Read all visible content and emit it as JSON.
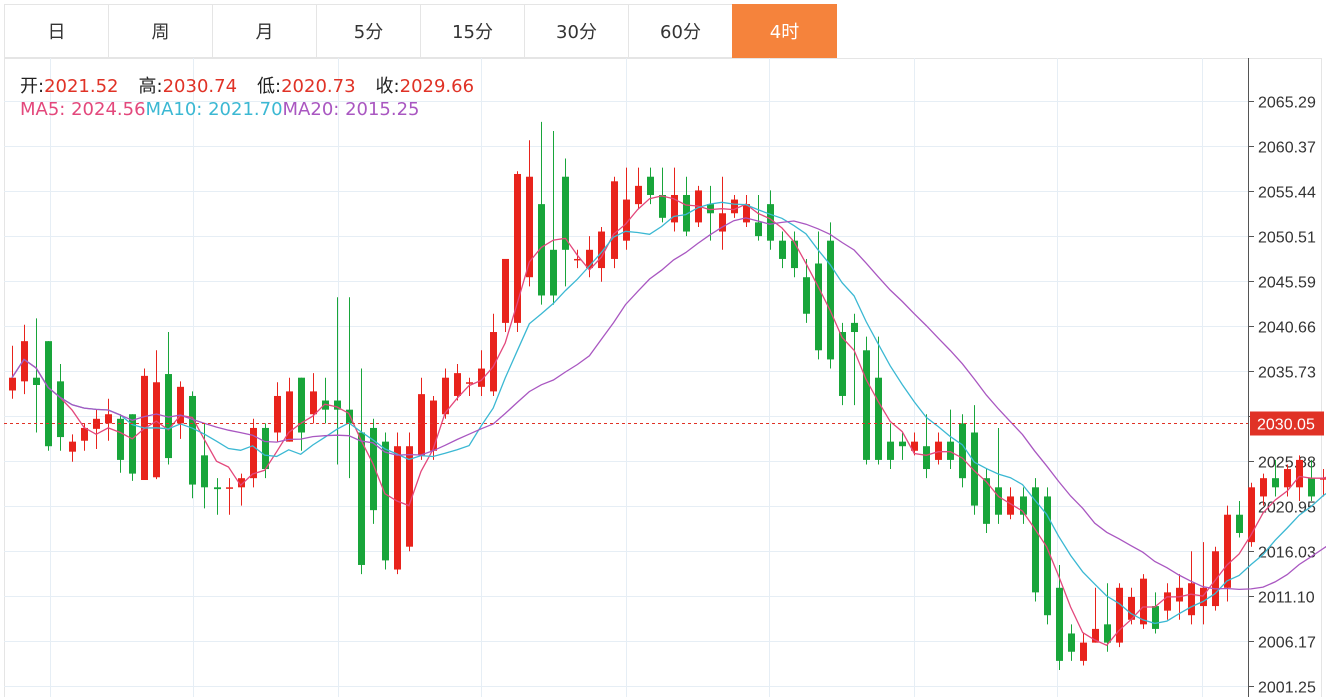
{
  "tabs": [
    {
      "label": "日",
      "active": false
    },
    {
      "label": "周",
      "active": false
    },
    {
      "label": "月",
      "active": false
    },
    {
      "label": "5分",
      "active": false
    },
    {
      "label": "15分",
      "active": false
    },
    {
      "label": "30分",
      "active": false
    },
    {
      "label": "60分",
      "active": false
    },
    {
      "label": "4时",
      "active": true
    }
  ],
  "info": {
    "open_label": "开:",
    "open": "2021.52",
    "high_label": "高:",
    "high": "2030.74",
    "low_label": "低:",
    "low": "2020.73",
    "close_label": "收:",
    "close": "2029.66",
    "ma5_label": "MA5:",
    "ma5": "2024.56",
    "ma10_label": "MA10:",
    "ma10": "2021.70",
    "ma20_label": "MA20:",
    "ma20": "2015.25"
  },
  "colors": {
    "up": "#e8231c",
    "down": "#18a53a",
    "ma5": "#e3487c",
    "ma10": "#3bb8d3",
    "ma20": "#a957c1",
    "accent": "#f5833c",
    "grid": "#e6eef5",
    "last_price": "#e03226"
  },
  "chart_data": {
    "type": "candlestick",
    "ylim": [
      2001.25,
      2069.5
    ],
    "yticks": [
      "2065.29",
      "2060.37",
      "2055.44",
      "2050.51",
      "2045.59",
      "2040.66",
      "2035.73",
      "2030.80",
      "2025.88",
      "2020.95",
      "2016.03",
      "2011.10",
      "2006.17",
      "2001.25"
    ],
    "last_price": "2030.05",
    "last_price_value": 2030.05,
    "candles": [
      [
        2033.6,
        2035.0,
        2032.7,
        2038.5
      ],
      [
        2034.6,
        2039.0,
        2033.2,
        2040.8
      ],
      [
        2035.0,
        2034.2,
        2029.0,
        2041.5
      ],
      [
        2039.0,
        2027.5,
        2027.0,
        2039.0
      ],
      [
        2034.6,
        2028.5,
        2027.0,
        2036.5
      ],
      [
        2026.9,
        2028.0,
        2025.8,
        2028.8
      ],
      [
        2028.1,
        2029.5,
        2027.0,
        2030.0
      ],
      [
        2029.4,
        2030.5,
        2027.2,
        2031.5
      ],
      [
        2030.0,
        2031.0,
        2028.1,
        2032.7
      ],
      [
        2030.5,
        2026.0,
        2024.6,
        2031.0
      ],
      [
        2031.0,
        2024.5,
        2023.7,
        2031.0
      ],
      [
        2023.8,
        2035.2,
        2023.8,
        2036.0
      ],
      [
        2024.1,
        2034.5,
        2023.9,
        2038.0
      ],
      [
        2035.4,
        2026.2,
        2025.5,
        2040.0
      ],
      [
        2030.0,
        2034.0,
        2028.3,
        2034.6
      ],
      [
        2033.0,
        2023.3,
        2021.8,
        2033.5
      ],
      [
        2026.5,
        2023.0,
        2020.7,
        2030.0
      ],
      [
        2023.0,
        2022.8,
        2020.0,
        2024.0
      ],
      [
        2023.0,
        2023.0,
        2020.0,
        2024.0
      ],
      [
        2023.0,
        2024.0,
        2021.0,
        2024.5
      ],
      [
        2024.0,
        2029.5,
        2023.0,
        2030.5
      ],
      [
        2029.5,
        2025.0,
        2024.0,
        2030.0
      ],
      [
        2029.0,
        2033.0,
        2028.0,
        2034.5
      ],
      [
        2028.0,
        2033.5,
        2028.0,
        2035.0
      ],
      [
        2035.0,
        2029.0,
        2027.0,
        2035.0
      ],
      [
        2031.0,
        2033.5,
        2030.0,
        2035.5
      ],
      [
        2032.5,
        2031.5,
        2030.0,
        2035.0
      ],
      [
        2032.5,
        2031.5,
        2025.5,
        2043.8
      ],
      [
        2031.5,
        2030.0,
        2024.0,
        2043.8
      ],
      [
        2029.0,
        2014.5,
        2013.5,
        2036.0
      ],
      [
        2029.5,
        2020.5,
        2019.0,
        2030.5
      ],
      [
        2028.0,
        2015.0,
        2014.0,
        2029.0
      ],
      [
        2014.0,
        2027.5,
        2013.5,
        2029.0
      ],
      [
        2016.5,
        2027.5,
        2016.0,
        2029.0
      ],
      [
        2026.5,
        2033.2,
        2026.0,
        2035.0
      ],
      [
        2027.0,
        2032.5,
        2026.0,
        2033.0
      ],
      [
        2031.0,
        2035.0,
        2030.5,
        2036.0
      ],
      [
        2033.0,
        2035.5,
        2032.5,
        2036.5
      ],
      [
        2034.5,
        2034.5,
        2033.0,
        2035.0
      ],
      [
        2034.0,
        2036.0,
        2033.0,
        2038.0
      ],
      [
        2033.5,
        2040.0,
        2033.0,
        2042.0
      ],
      [
        2041.0,
        2048.0,
        2040.0,
        2048.0
      ],
      [
        2041.0,
        2057.3,
        2040.0,
        2057.6
      ],
      [
        2046.0,
        2057.0,
        2045.0,
        2061.0
      ],
      [
        2054.0,
        2044.0,
        2043.0,
        2063.0
      ],
      [
        2049.0,
        2044.0,
        2043.0,
        2062.0
      ],
      [
        2057.0,
        2049.0,
        2045.0,
        2059.0
      ],
      [
        2048.0,
        2048.0,
        2047.0,
        2049.0
      ],
      [
        2047.0,
        2049.0,
        2046.0,
        2050.5
      ],
      [
        2047.0,
        2051.0,
        2045.5,
        2051.5
      ],
      [
        2048.0,
        2056.5,
        2047.0,
        2057.0
      ],
      [
        2050.0,
        2054.5,
        2049.0,
        2058.0
      ],
      [
        2054.0,
        2056.0,
        2053.5,
        2058.0
      ],
      [
        2057.0,
        2055.0,
        2054.0,
        2058.0
      ],
      [
        2055.0,
        2052.5,
        2052.0,
        2058.0
      ],
      [
        2052.0,
        2055.0,
        2051.0,
        2058.0
      ],
      [
        2055.0,
        2051.0,
        2050.5,
        2057.0
      ],
      [
        2052.0,
        2055.5,
        2051.5,
        2056.0
      ],
      [
        2054.0,
        2053.0,
        2050.0,
        2056.0
      ],
      [
        2051.0,
        2053.0,
        2049.0,
        2057.0
      ],
      [
        2053.0,
        2054.5,
        2052.5,
        2055.0
      ],
      [
        2052.0,
        2054.0,
        2051.5,
        2055.0
      ],
      [
        2052.0,
        2050.5,
        2050.0,
        2055.0
      ],
      [
        2054.0,
        2050.0,
        2049.0,
        2055.5
      ],
      [
        2050.0,
        2048.0,
        2047.0,
        2051.0
      ],
      [
        2050.0,
        2047.0,
        2046.0,
        2051.0
      ],
      [
        2046.0,
        2042.0,
        2041.0,
        2048.0
      ],
      [
        2047.5,
        2038.0,
        2037.0,
        2051.0
      ],
      [
        2050.0,
        2037.0,
        2036.0,
        2052.0
      ],
      [
        2040.0,
        2033.0,
        2032.0,
        2041.0
      ],
      [
        2041.0,
        2040.0,
        2032.0,
        2042.0
      ],
      [
        2038.0,
        2026.0,
        2025.5,
        2039.5
      ],
      [
        2035.0,
        2026.0,
        2025.5,
        2039.5
      ],
      [
        2028.0,
        2026.0,
        2025.0,
        2030.0
      ],
      [
        2028.0,
        2027.5,
        2026.0,
        2029.0
      ],
      [
        2027.0,
        2028.0,
        2026.5,
        2029.0
      ],
      [
        2027.5,
        2025.0,
        2024.0,
        2031.0
      ],
      [
        2026.0,
        2028.0,
        2025.5,
        2029.0
      ],
      [
        2028.0,
        2026.0,
        2025.0,
        2031.5
      ],
      [
        2030.0,
        2024.0,
        2023.0,
        2031.0
      ],
      [
        2029.0,
        2021.0,
        2020.0,
        2032.0
      ],
      [
        2024.0,
        2019.0,
        2018.0,
        2025.0
      ],
      [
        2023.0,
        2020.0,
        2019.0,
        2029.5
      ],
      [
        2020.0,
        2022.0,
        2019.5,
        2023.0
      ],
      [
        2022.0,
        2020.0,
        2019.0,
        2023.0
      ],
      [
        2023.0,
        2011.5,
        2010.5,
        2024.0
      ],
      [
        2022.0,
        2009.0,
        2008.0,
        2023.0
      ],
      [
        2012.0,
        2004.0,
        2003.0,
        2014.5
      ],
      [
        2007.0,
        2005.0,
        2004.0,
        2008.0
      ],
      [
        2004.0,
        2006.0,
        2003.5,
        2007.0
      ],
      [
        2006.0,
        2007.5,
        2006.0,
        2012.0
      ],
      [
        2008.0,
        2006.0,
        2005.0,
        2012.5
      ],
      [
        2006.0,
        2012.0,
        2005.5,
        2012.5
      ],
      [
        2008.5,
        2011.0,
        2008.0,
        2012.0
      ],
      [
        2008.0,
        2013.0,
        2007.5,
        2013.5
      ],
      [
        2010.0,
        2007.5,
        2007.0,
        2011.5
      ],
      [
        2009.5,
        2011.5,
        2008.5,
        2012.5
      ],
      [
        2010.5,
        2012.0,
        2008.5,
        2013.5
      ],
      [
        2009.0,
        2012.5,
        2008.0,
        2016.0
      ],
      [
        2010.0,
        2012.0,
        2008.0,
        2017.0
      ],
      [
        2010.0,
        2016.0,
        2009.5,
        2016.5
      ],
      [
        2012.0,
        2020.0,
        2010.5,
        2021.0
      ],
      [
        2020.0,
        2018.0,
        2017.5,
        2021.5
      ],
      [
        2017.0,
        2023.0,
        2016.5,
        2023.5
      ],
      [
        2022.0,
        2024.0,
        2021.0,
        2024.5
      ],
      [
        2024.0,
        2023.0,
        2022.0,
        2026.0
      ],
      [
        2023.0,
        2025.0,
        2022.0,
        2025.5
      ],
      [
        2023.0,
        2026.0,
        2021.5,
        2026.5
      ],
      [
        2024.0,
        2022.0,
        2021.5,
        2026.0
      ],
      [
        2024.0,
        2024.0,
        2022.0,
        2025.0
      ],
      [
        2022.0,
        2025.0,
        2021.0,
        2026.0
      ],
      [
        2021.0,
        2029.0,
        2020.5,
        2030.0
      ],
      [
        2023.0,
        2029.5,
        2022.5,
        2030.5
      ],
      [
        2029.0,
        2029.5,
        2029.0,
        2030.5
      ]
    ]
  }
}
